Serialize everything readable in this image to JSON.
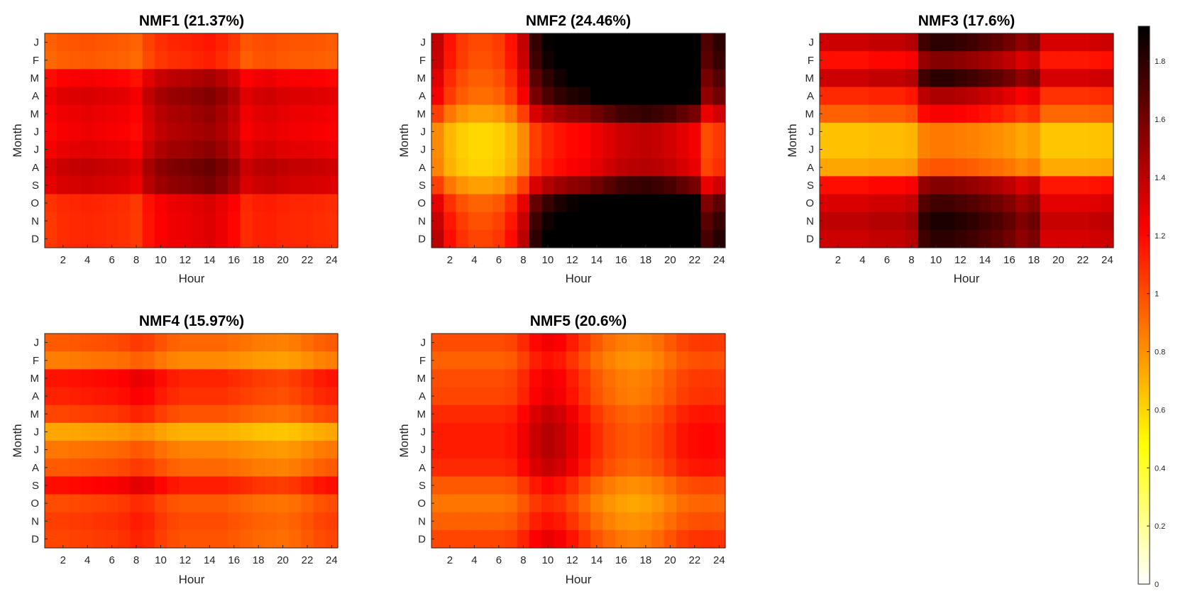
{
  "chart_data": {
    "type": "heatmap",
    "colormap": "hot",
    "colorbar": {
      "range": [
        0,
        1.92
      ],
      "ticks": [
        0,
        0.2,
        0.4,
        0.6,
        0.8,
        1,
        1.2,
        1.4,
        1.6,
        1.8
      ]
    },
    "shared": {
      "xlabel": "Hour",
      "ylabel": "Month",
      "x_tick_labels": [
        "2",
        "4",
        "6",
        "8",
        "10",
        "12",
        "14",
        "16",
        "18",
        "20",
        "22",
        "24"
      ],
      "y_tick_labels": [
        "J",
        "F",
        "M",
        "A",
        "M",
        "J",
        "J",
        "A",
        "S",
        "O",
        "N",
        "D"
      ],
      "hours": 24,
      "months": 12
    },
    "panels": [
      {
        "title": "NMF1 (21.37%)",
        "hour_profile": [
          1.02,
          1.05,
          1.06,
          1.07,
          1.06,
          1.05,
          1.04,
          1.01,
          1.12,
          1.18,
          1.21,
          1.22,
          1.24,
          1.26,
          1.22,
          1.16,
          1.05,
          1.08,
          1.09,
          1.07,
          1.06,
          1.06,
          1.05,
          1.04
        ],
        "month_profile": [
          0.92,
          0.9,
          1.16,
          1.24,
          1.2,
          1.18,
          1.22,
          1.3,
          1.26,
          1.05,
          1.04,
          1.04
        ]
      },
      {
        "title": "NMF2 (24.46%)",
        "hour_profile": [
          1.02,
          0.86,
          0.78,
          0.74,
          0.74,
          0.77,
          0.86,
          1.02,
          1.3,
          1.4,
          1.46,
          1.5,
          1.52,
          1.58,
          1.64,
          1.7,
          1.72,
          1.74,
          1.72,
          1.68,
          1.62,
          1.56,
          1.25,
          1.32
        ],
        "month_profile": [
          1.36,
          1.34,
          1.28,
          1.22,
          1.02,
          0.8,
          0.8,
          0.82,
          1.02,
          1.26,
          1.34,
          1.38
        ]
      },
      {
        "title": "NMF3 (17.6%)",
        "hour_profile": [
          1.0,
          1.0,
          1.0,
          1.0,
          1.02,
          1.02,
          1.02,
          1.05,
          1.28,
          1.32,
          1.32,
          1.3,
          1.28,
          1.25,
          1.22,
          1.18,
          1.12,
          1.16,
          0.98,
          0.98,
          0.98,
          0.98,
          0.99,
          1.0
        ],
        "month_profile": [
          1.36,
          1.18,
          1.36,
          1.1,
          0.94,
          0.66,
          0.66,
          0.74,
          1.18,
          1.32,
          1.4,
          1.36
        ]
      },
      {
        "title": "NMF4 (15.97%)",
        "hour_profile": [
          1.02,
          1.02,
          1.03,
          1.04,
          1.05,
          1.06,
          1.08,
          1.12,
          1.1,
          1.04,
          1.0,
          0.98,
          0.98,
          0.98,
          0.98,
          0.96,
          0.94,
          0.92,
          0.91,
          0.9,
          0.92,
          0.96,
          1.0,
          1.02
        ],
        "month_profile": [
          0.94,
          0.84,
          1.14,
          1.1,
          1.0,
          0.72,
          0.86,
          0.94,
          1.16,
          0.98,
          1.02,
          1.0
        ]
      },
      {
        "title": "NMF5 (20.6%)",
        "hour_profile": [
          1.0,
          1.0,
          1.0,
          1.0,
          1.0,
          1.0,
          1.02,
          1.1,
          1.2,
          1.25,
          1.22,
          1.14,
          1.05,
          0.96,
          0.9,
          0.86,
          0.84,
          0.86,
          0.9,
          0.96,
          1.02,
          1.05,
          1.06,
          1.05
        ],
        "month_profile": [
          1.0,
          0.94,
          1.0,
          1.02,
          1.1,
          1.14,
          1.14,
          1.1,
          0.96,
          0.88,
          0.94,
          1.02
        ]
      }
    ]
  }
}
